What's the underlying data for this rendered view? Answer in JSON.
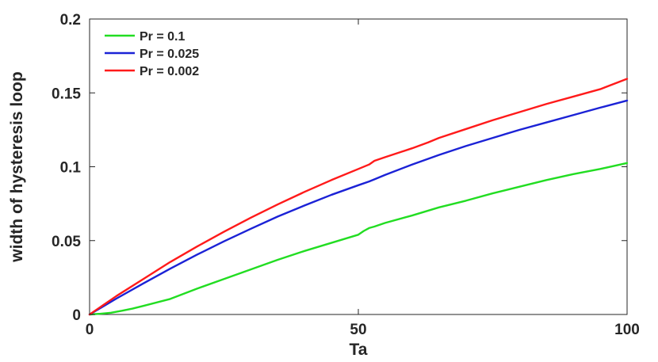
{
  "chart_data": {
    "type": "line",
    "title": "",
    "xlabel": "Ta",
    "ylabel": "width of hysteresis loop",
    "xlim": [
      0,
      100
    ],
    "ylim": [
      0,
      0.2
    ],
    "xticks": [
      0,
      50,
      100
    ],
    "xtick_labels": [
      "0",
      "50",
      "100"
    ],
    "yticks": [
      0,
      0.05,
      0.1,
      0.15,
      0.2
    ],
    "ytick_labels": [
      "0",
      "0.05",
      "0.1",
      "0.15",
      "0.2"
    ],
    "grid": false,
    "legend_position": "top-left",
    "series": [
      {
        "name": "Pr = 0.1",
        "color": "#22dd22",
        "x": [
          0,
          2,
          4,
          6,
          8,
          10,
          15,
          20,
          25,
          30,
          35,
          40,
          45,
          50,
          51,
          52,
          53,
          55,
          60,
          65,
          70,
          75,
          80,
          85,
          90,
          95,
          100
        ],
        "y": [
          0,
          0.0005,
          0.0012,
          0.0025,
          0.004,
          0.0058,
          0.0105,
          0.0175,
          0.024,
          0.0305,
          0.037,
          0.043,
          0.0485,
          0.054,
          0.0565,
          0.0585,
          0.0595,
          0.062,
          0.067,
          0.0725,
          0.077,
          0.082,
          0.0865,
          0.091,
          0.095,
          0.0985,
          0.1025
        ]
      },
      {
        "name": "Pr = 0.025",
        "color": "#1b22d6",
        "x": [
          0,
          5,
          10,
          15,
          20,
          25,
          30,
          35,
          40,
          45,
          50,
          52,
          53,
          55,
          60,
          65,
          70,
          75,
          80,
          85,
          90,
          95,
          100
        ],
        "y": [
          0,
          0.0108,
          0.021,
          0.031,
          0.0405,
          0.0495,
          0.058,
          0.0663,
          0.0738,
          0.081,
          0.0875,
          0.09,
          0.0915,
          0.0945,
          0.1015,
          0.108,
          0.114,
          0.1195,
          0.125,
          0.13,
          0.135,
          0.14,
          0.1448
        ]
      },
      {
        "name": "Pr = 0.002",
        "color": "#ff1a1a",
        "x": [
          0,
          5,
          10,
          15,
          20,
          25,
          30,
          35,
          40,
          45,
          50,
          52,
          53,
          55,
          60,
          63,
          65,
          70,
          75,
          80,
          85,
          90,
          95,
          100
        ],
        "y": [
          0,
          0.0125,
          0.024,
          0.0355,
          0.046,
          0.056,
          0.0655,
          0.0745,
          0.083,
          0.091,
          0.0985,
          0.1015,
          0.104,
          0.1065,
          0.1125,
          0.1165,
          0.1195,
          0.1255,
          0.1315,
          0.137,
          0.1425,
          0.1475,
          0.1525,
          0.1595
        ]
      }
    ]
  }
}
